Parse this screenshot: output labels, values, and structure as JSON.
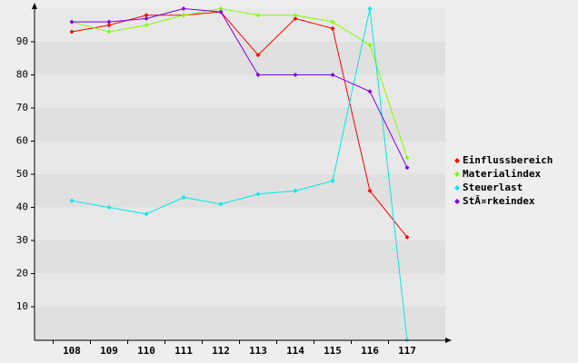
{
  "chart_data": {
    "type": "line",
    "categories": [
      "108",
      "109",
      "110",
      "111",
      "112",
      "113",
      "114",
      "115",
      "116",
      "117"
    ],
    "series": [
      {
        "name": "Einflussbereich",
        "color": "#ff0000",
        "values": [
          93,
          95,
          98,
          98,
          99,
          86,
          97,
          94,
          45,
          31
        ]
      },
      {
        "name": "Materialindex",
        "color": "#80ff00",
        "values": [
          96,
          93,
          95,
          98,
          100,
          98,
          98,
          96,
          89,
          55
        ]
      },
      {
        "name": "Steuerlast",
        "color": "#00e8e8",
        "values": [
          42,
          40,
          38,
          43,
          41,
          44,
          45,
          48,
          100,
          0
        ]
      },
      {
        "name": "StÃ¤rkeindex",
        "color": "#8000e0",
        "values": [
          96,
          96,
          97,
          100,
          99,
          80,
          80,
          80,
          75,
          52
        ]
      }
    ],
    "ylim": [
      0,
      100
    ],
    "yticks": [
      10,
      20,
      30,
      40,
      50,
      60,
      70,
      80,
      90
    ],
    "grid": true,
    "legend": "right"
  }
}
